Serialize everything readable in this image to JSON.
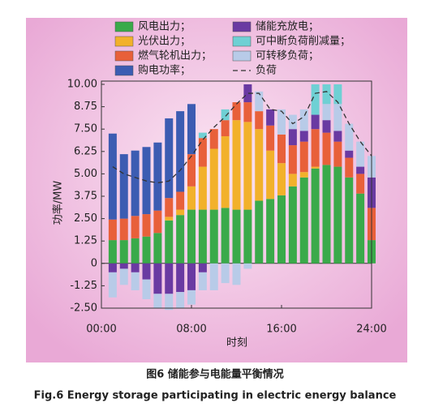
{
  "chart_data": {
    "type": "stacked_bar",
    "x": [
      1,
      2,
      3,
      4,
      5,
      6,
      7,
      8,
      9,
      10,
      11,
      12,
      13,
      14,
      15,
      16,
      17,
      18,
      19,
      20,
      21,
      22,
      23,
      24
    ],
    "xlim": [
      0,
      24
    ],
    "xticks": [
      {
        "value": 0,
        "label": "00:00"
      },
      {
        "value": 8,
        "label": "08:00"
      },
      {
        "value": 16,
        "label": "16:00"
      },
      {
        "value": 24,
        "label": "24:00"
      }
    ],
    "ylim": [
      -2.5,
      10
    ],
    "yticks": [
      {
        "value": -2.5,
        "label": "-2.50"
      },
      {
        "value": -1.25,
        "label": "-1.25"
      },
      0,
      {
        "value": 1.25,
        "label": "1.25"
      },
      {
        "value": 2.5,
        "label": "2.50"
      },
      {
        "value": 3.75,
        "label": "3.75"
      },
      {
        "value": 5,
        "label": "5.00"
      },
      {
        "value": 6.25,
        "label": "6.25"
      },
      {
        "value": 7.5,
        "label": "7.50"
      },
      {
        "value": 8.75,
        "label": "8.75"
      },
      {
        "value": 10,
        "label": "10.00"
      }
    ],
    "xlabel": "时刻",
    "ylabel": "功率/MW",
    "series": [
      {
        "name": "风电出力；",
        "color": "#3aaa4a",
        "values": [
          1.3,
          1.3,
          1.4,
          1.5,
          1.7,
          2.4,
          2.7,
          3.0,
          3.0,
          3.0,
          3.1,
          3.0,
          3.0,
          3.5,
          3.6,
          3.8,
          4.3,
          4.8,
          5.3,
          5.5,
          5.4,
          4.8,
          3.9,
          1.3
        ]
      },
      {
        "name": "光伏出力；",
        "color": "#f2b12b",
        "values": [
          0,
          0,
          0,
          0,
          0,
          0.2,
          0.3,
          1.3,
          2.4,
          3.4,
          4.0,
          5.0,
          4.9,
          4.0,
          2.7,
          1.8,
          0.7,
          0.3,
          0.1,
          0,
          0,
          0,
          0,
          0
        ]
      },
      {
        "name": "燃气轮机出力；",
        "color": "#e8603a",
        "values": [
          1.15,
          1.2,
          1.25,
          1.25,
          1.25,
          1.05,
          1.0,
          1.8,
          1.6,
          1.1,
          0.9,
          1.0,
          1.1,
          1.0,
          1.4,
          1.6,
          1.6,
          1.7,
          2.1,
          1.8,
          1.4,
          1.1,
          1.1,
          1.8
        ]
      },
      {
        "name": "购电功率；",
        "color": "#3c5cb2",
        "values": [
          4.8,
          3.6,
          3.65,
          3.75,
          3.8,
          4.45,
          4.5,
          2.8,
          0,
          0,
          0,
          0,
          0,
          0,
          0,
          0,
          0,
          0,
          0,
          0,
          0,
          0,
          0,
          0
        ]
      },
      {
        "name": "储能充放电；",
        "color": "#6a3aa2",
        "values": [
          -0.5,
          -0.3,
          -0.5,
          -0.9,
          -1.7,
          -1.7,
          -1.6,
          -1.5,
          -0.5,
          0,
          0,
          0,
          1.0,
          0,
          0.9,
          0,
          0.9,
          0.6,
          0.8,
          0.7,
          0.6,
          0.4,
          0.4,
          1.7
        ]
      },
      {
        "name": "可转移负荷；",
        "color": "#b8cbe8",
        "values": [
          -1.4,
          -0.9,
          -1.0,
          -1.1,
          -0.8,
          -0.9,
          -0.9,
          -0.8,
          -1.0,
          -1.5,
          -1.1,
          -1.2,
          -0.3,
          1.1,
          0,
          1.4,
          0.8,
          1.2,
          0,
          0.9,
          1.5,
          1.5,
          1.4,
          1.2
        ]
      },
      {
        "name": "可中断负荷削减量；",
        "color": "#6fd0d4",
        "values": [
          0,
          0,
          0,
          0,
          0,
          0,
          0,
          0,
          0.3,
          0,
          0.6,
          0,
          0,
          0,
          0,
          0,
          0,
          0,
          1.7,
          1.1,
          1.1,
          0,
          0,
          0
        ]
      }
    ],
    "load": {
      "name": "负荷",
      "color": "#333333",
      "values": [
        5.4,
        5.0,
        4.8,
        4.6,
        4.5,
        4.6,
        5.2,
        6.0,
        6.9,
        7.6,
        8.2,
        8.9,
        9.5,
        9.5,
        8.6,
        8.5,
        7.8,
        8.2,
        9.5,
        9.6,
        9.0,
        7.8,
        6.8,
        6.0
      ]
    },
    "caption_cn": "图6  储能参与电能量平衡情况",
    "caption_en": "Fig.6  Energy storage participating in electric energy balance"
  }
}
